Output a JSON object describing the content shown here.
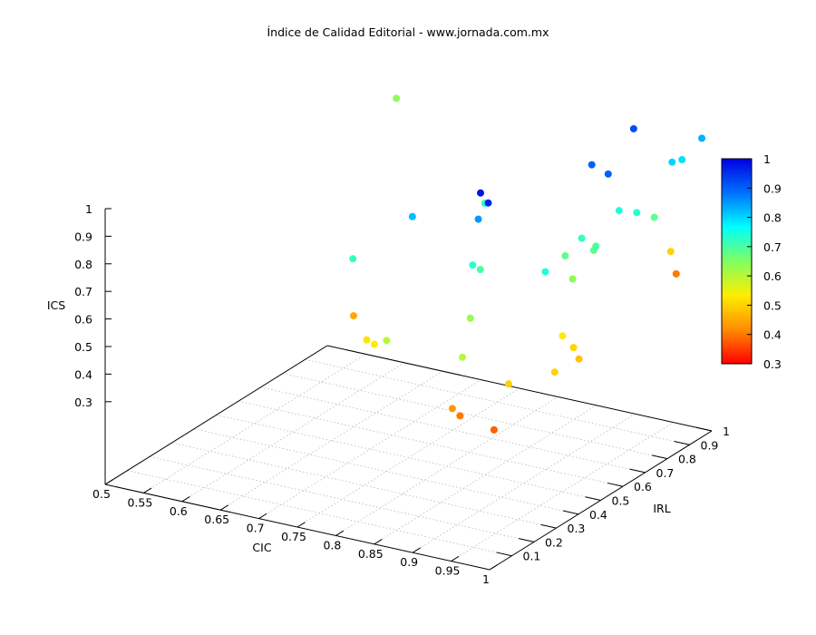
{
  "chart_data": {
    "type": "scatter3d",
    "title": "Índice de Calidad Editorial - www.jornada.com.mx",
    "xlabel": "CIC",
    "ylabel": "IRL",
    "zlabel": "ICS",
    "xlim": [
      0.5,
      1
    ],
    "ylim": [
      0,
      1
    ],
    "zlim": [
      0,
      1
    ],
    "xticks": [
      "0.5",
      "0.55",
      "0.6",
      "0.65",
      "0.7",
      "0.75",
      "0.8",
      "0.85",
      "0.9",
      "0.95",
      "1"
    ],
    "yticks": [
      "0.1",
      "0.2",
      "0.3",
      "0.4",
      "0.5",
      "0.6",
      "0.7",
      "0.8",
      "0.9",
      "1"
    ],
    "zticks": [
      "0.3",
      "0.4",
      "0.5",
      "0.6",
      "0.7",
      "0.8",
      "0.9",
      "1"
    ],
    "colorbar": {
      "min": 0.3,
      "max": 1,
      "ticks": [
        "0.3",
        "0.4",
        "0.5",
        "0.6",
        "0.7",
        "0.8",
        "0.9",
        "1"
      ],
      "palette": [
        "#ff0000",
        "#ff8c00",
        "#ffee00",
        "#80ff60",
        "#00ffff",
        "#0070ff",
        "#0000e0"
      ]
    },
    "grid": true,
    "points": [
      {
        "x": 0.61,
        "y": 0.93,
        "z": 1.0,
        "c": 0.64
      },
      {
        "x": 0.68,
        "y": 0.76,
        "z": 0.7,
        "c": 0.82
      },
      {
        "x": 0.62,
        "y": 0.7,
        "z": 0.54,
        "c": 0.72
      },
      {
        "x": 0.67,
        "y": 0.53,
        "z": 0.45,
        "c": 0.45
      },
      {
        "x": 0.69,
        "y": 0.52,
        "z": 0.38,
        "c": 0.52
      },
      {
        "x": 0.7,
        "y": 0.52,
        "z": 0.37,
        "c": 0.53
      },
      {
        "x": 0.71,
        "y": 0.54,
        "z": 0.38,
        "c": 0.6
      },
      {
        "x": 0.76,
        "y": 0.78,
        "z": 0.73,
        "c": 0.85
      },
      {
        "x": 0.76,
        "y": 0.79,
        "z": 0.82,
        "c": 0.98
      },
      {
        "x": 0.77,
        "y": 0.79,
        "z": 0.79,
        "c": 0.96
      },
      {
        "x": 0.78,
        "y": 0.74,
        "z": 0.82,
        "c": 0.72
      },
      {
        "x": 0.77,
        "y": 0.72,
        "z": 0.6,
        "c": 0.73
      },
      {
        "x": 0.78,
        "y": 0.72,
        "z": 0.59,
        "c": 0.7
      },
      {
        "x": 0.79,
        "y": 0.64,
        "z": 0.46,
        "c": 0.63
      },
      {
        "x": 0.8,
        "y": 0.57,
        "z": 0.36,
        "c": 0.6
      },
      {
        "x": 0.81,
        "y": 0.49,
        "z": 0.22,
        "c": 0.43
      },
      {
        "x": 0.82,
        "y": 0.49,
        "z": 0.2,
        "c": 0.4
      },
      {
        "x": 0.86,
        "y": 0.57,
        "z": 0.3,
        "c": 0.5
      },
      {
        "x": 0.87,
        "y": 0.47,
        "z": 0.19,
        "c": 0.38
      },
      {
        "x": 0.85,
        "y": 0.77,
        "z": 0.6,
        "c": 0.74
      },
      {
        "x": 0.87,
        "y": 0.79,
        "z": 0.66,
        "c": 0.68
      },
      {
        "x": 0.88,
        "y": 0.83,
        "z": 0.71,
        "c": 0.72
      },
      {
        "x": 0.87,
        "y": 0.91,
        "z": 0.93,
        "c": 0.9
      },
      {
        "x": 0.9,
        "y": 0.88,
        "z": 0.93,
        "c": 0.9
      },
      {
        "x": 0.91,
        "y": 0.96,
        "z": 1.06,
        "c": 0.92
      },
      {
        "x": 0.9,
        "y": 0.72,
        "z": 0.63,
        "c": 0.64
      },
      {
        "x": 0.91,
        "y": 0.64,
        "z": 0.47,
        "c": 0.53
      },
      {
        "x": 0.92,
        "y": 0.57,
        "z": 0.38,
        "c": 0.5
      },
      {
        "x": 0.93,
        "y": 0.62,
        "z": 0.45,
        "c": 0.5
      },
      {
        "x": 0.94,
        "y": 0.61,
        "z": 0.42,
        "c": 0.48
      },
      {
        "x": 0.91,
        "y": 0.78,
        "z": 0.71,
        "c": 0.68
      },
      {
        "x": 0.91,
        "y": 0.79,
        "z": 0.72,
        "c": 0.7
      },
      {
        "x": 0.92,
        "y": 0.86,
        "z": 0.82,
        "c": 0.74
      },
      {
        "x": 0.94,
        "y": 0.87,
        "z": 0.82,
        "c": 0.73
      },
      {
        "x": 0.96,
        "y": 0.88,
        "z": 0.81,
        "c": 0.68
      },
      {
        "x": 0.96,
        "y": 0.96,
        "z": 0.97,
        "c": 0.8
      },
      {
        "x": 0.97,
        "y": 0.97,
        "z": 0.98,
        "c": 0.79
      },
      {
        "x": 0.99,
        "y": 0.99,
        "z": 1.06,
        "c": 0.83
      },
      {
        "x": 0.99,
        "y": 0.85,
        "z": 0.72,
        "c": 0.5
      },
      {
        "x": 1.0,
        "y": 0.84,
        "z": 0.65,
        "c": 0.4
      }
    ]
  }
}
